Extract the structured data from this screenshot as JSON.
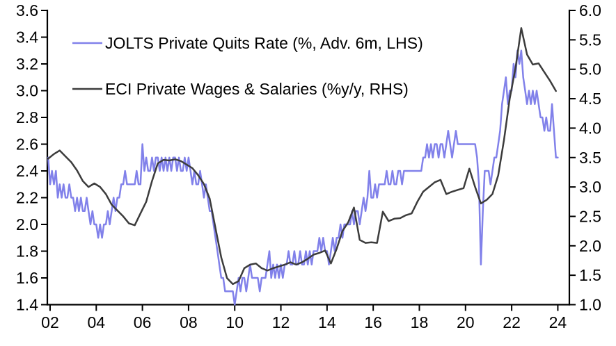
{
  "chart_data": {
    "type": "line",
    "title": "",
    "background": "#ffffff",
    "axis_color": "#000000",
    "legend_position": "top-left",
    "grid": false,
    "axes": {
      "x": {
        "min": 2001.88,
        "max": 2024.5,
        "tick_values": [
          2002,
          2004,
          2006,
          2008,
          2010,
          2012,
          2014,
          2016,
          2018,
          2020,
          2022,
          2024
        ],
        "tick_labels": [
          "02",
          "04",
          "06",
          "08",
          "10",
          "12",
          "14",
          "16",
          "18",
          "20",
          "22",
          "24"
        ]
      },
      "left": {
        "min": 1.4,
        "max": 3.6,
        "step": 0.2,
        "tick_values": [
          3.6,
          3.4,
          3.2,
          3.0,
          2.8,
          2.6,
          2.4,
          2.2,
          2.0,
          1.8,
          1.6,
          1.4
        ],
        "tick_labels": [
          "3.6",
          "3.4",
          "3.2",
          "3.0",
          "2.8",
          "2.6",
          "2.4",
          "2.2",
          "2.0",
          "1.8",
          "1.6",
          "1.4"
        ]
      },
      "right": {
        "min": 1.0,
        "max": 6.0,
        "step": 0.5,
        "tick_values": [
          6.0,
          5.5,
          5.0,
          4.5,
          4.0,
          3.5,
          3.0,
          2.5,
          2.0,
          1.5,
          1.0
        ],
        "tick_labels": [
          "6.0",
          "5.5",
          "5.0",
          "4.5",
          "4.0",
          "3.5",
          "3.0",
          "2.5",
          "2.0",
          "1.5",
          "1.0"
        ]
      }
    },
    "series": [
      {
        "name": "JOLTS Private Quits Rate (%, Adv. 6m, LHS)",
        "axis": "left",
        "color": "#8181EA",
        "start_year": 2001.9167,
        "step_months": 1,
        "values": [
          2.5,
          2.3,
          2.4,
          2.3,
          2.4,
          2.2,
          2.3,
          2.2,
          2.3,
          2.2,
          2.2,
          2.3,
          2.2,
          2.2,
          2.1,
          2.2,
          2.1,
          2.2,
          2.1,
          2.1,
          2.2,
          2.1,
          2.0,
          2.1,
          2.0,
          2.0,
          1.9,
          2.0,
          1.9,
          2.0,
          2.0,
          2.1,
          2.0,
          2.1,
          2.2,
          2.1,
          2.2,
          2.2,
          2.3,
          2.3,
          2.4,
          2.3,
          2.3,
          2.3,
          2.3,
          2.3,
          2.4,
          2.3,
          2.3,
          2.6,
          2.4,
          2.5,
          2.4,
          2.4,
          2.5,
          2.4,
          2.5,
          2.5,
          2.4,
          2.5,
          2.4,
          2.5,
          2.4,
          2.5,
          2.4,
          2.5,
          2.5,
          2.4,
          2.5,
          2.4,
          2.4,
          2.5,
          2.4,
          2.5,
          2.4,
          2.3,
          2.4,
          2.3,
          2.3,
          2.4,
          2.3,
          2.2,
          2.3,
          2.2,
          2.1,
          2.1,
          2.0,
          1.9,
          1.8,
          1.7,
          1.6,
          1.6,
          1.5,
          1.5,
          1.5,
          1.5,
          1.5,
          1.4,
          1.5,
          1.6,
          1.5,
          1.6,
          1.6,
          1.5,
          1.6,
          1.7,
          1.6,
          1.6,
          1.6,
          1.6,
          1.5,
          1.6,
          1.6,
          1.6,
          1.7,
          1.8,
          1.6,
          1.7,
          1.6,
          1.7,
          1.6,
          1.7,
          1.6,
          1.7,
          1.7,
          1.8,
          1.7,
          1.7,
          1.8,
          1.7,
          1.7,
          1.8,
          1.7,
          1.7,
          1.8,
          1.7,
          1.8,
          1.7,
          1.8,
          1.8,
          1.8,
          1.9,
          1.8,
          1.9,
          1.8,
          1.8,
          1.7,
          1.8,
          1.9,
          1.8,
          1.9,
          1.9,
          2.0,
          1.9,
          2.0,
          2.0,
          2.0,
          2.0,
          2.1,
          2.0,
          2.1,
          2.1,
          2.0,
          2.1,
          2.2,
          2.1,
          2.2,
          2.4,
          2.2,
          2.2,
          2.3,
          2.2,
          2.3,
          2.3,
          2.3,
          2.3,
          2.4,
          2.3,
          2.3,
          2.4,
          2.3,
          2.3,
          2.4,
          2.4,
          2.3,
          2.4,
          2.4,
          2.4,
          2.4,
          2.4,
          2.4,
          2.4,
          2.4,
          2.4,
          2.4,
          2.5,
          2.5,
          2.6,
          2.5,
          2.6,
          2.5,
          2.6,
          2.6,
          2.5,
          2.6,
          2.6,
          2.5,
          2.6,
          2.7,
          2.6,
          2.5,
          2.6,
          2.7,
          2.6,
          2.6,
          2.6,
          2.6,
          2.6,
          2.6,
          2.6,
          2.6,
          2.6,
          2.6,
          2.5,
          2.3,
          1.7,
          2.1,
          2.4,
          2.4,
          2.4,
          2.3,
          2.4,
          2.5,
          2.5,
          2.6,
          2.7,
          2.9,
          3.0,
          3.1,
          2.9,
          3.0,
          3.0,
          3.2,
          3.1,
          3.3,
          3.2,
          3.3,
          3.1,
          3.0,
          2.9,
          3.0,
          2.9,
          3.0,
          2.9,
          3.0,
          2.9,
          2.8,
          2.8,
          2.7,
          2.8,
          2.7,
          2.7,
          2.9,
          2.7,
          2.5,
          2.5
        ]
      },
      {
        "name": "ECI Private Wages & Salaries (%y/y, RHS)",
        "axis": "right",
        "color": "#3C3C3C",
        "start_year": 2001.9167,
        "step_months": 3,
        "values": [
          3.48,
          3.56,
          3.62,
          3.52,
          3.42,
          3.28,
          3.1,
          3.0,
          3.06,
          3.0,
          2.88,
          2.7,
          2.6,
          2.5,
          2.38,
          2.35,
          2.55,
          2.75,
          3.1,
          3.4,
          3.46,
          3.45,
          3.47,
          3.44,
          3.38,
          3.32,
          3.2,
          3.05,
          2.8,
          2.3,
          1.8,
          1.45,
          1.35,
          1.4,
          1.62,
          1.68,
          1.7,
          1.62,
          1.58,
          1.62,
          1.65,
          1.68,
          1.72,
          1.68,
          1.72,
          1.78,
          1.85,
          1.88,
          1.92,
          1.7,
          1.95,
          2.25,
          2.4,
          2.65,
          2.1,
          2.05,
          2.06,
          2.05,
          2.58,
          2.42,
          2.46,
          2.47,
          2.52,
          2.55,
          2.75,
          2.92,
          3.0,
          3.08,
          3.12,
          2.88,
          2.92,
          2.95,
          2.98,
          3.31,
          3.0,
          2.72,
          2.78,
          2.88,
          3.2,
          3.8,
          4.5,
          5.02,
          5.7,
          5.25,
          5.08,
          5.1,
          4.95,
          4.8,
          4.63
        ]
      }
    ]
  }
}
